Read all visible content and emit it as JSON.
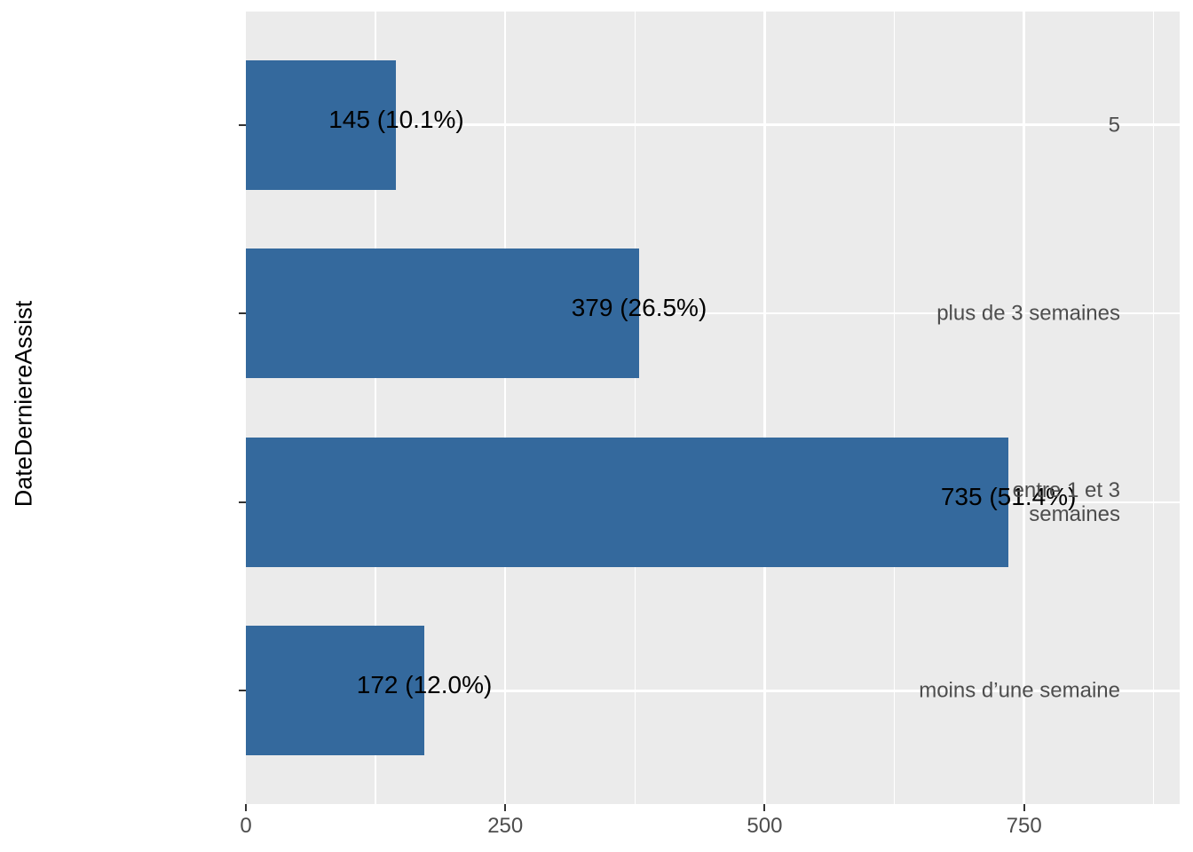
{
  "colors": {
    "bar_fill": "#34699D",
    "panel_background": "#EBEBEB",
    "gridline": "#FFFFFF",
    "tick_mark": "#333333",
    "axis_text": "#4D4D4D",
    "label_text": "#000000",
    "page_background": "#FFFFFF"
  },
  "chart_data": {
    "type": "bar",
    "orientation": "horizontal",
    "title": "",
    "xlabel": "",
    "ylabel": "DateDerniereAssist",
    "categories": [
      "5",
      "plus de 3 semaines",
      "entre 1 et 3\nsemaines",
      "moins d’une semaine"
    ],
    "values": [
      145,
      379,
      735,
      172
    ],
    "percentages": [
      10.1,
      26.5,
      51.4,
      12.0
    ],
    "bar_labels": [
      "145 (10.1%)",
      "379 (26.5%)",
      "735 (51.4%)",
      "172 (12.0%)"
    ],
    "x_major_ticks": [
      0,
      250,
      500,
      750
    ],
    "x_tick_labels": [
      "0",
      "250",
      "500",
      "750"
    ],
    "x_minor_ticks": [
      125,
      375,
      625,
      875
    ],
    "xlim": [
      0,
      900
    ],
    "grid": true,
    "legend": false,
    "panel_style": "ggplot-gray"
  }
}
